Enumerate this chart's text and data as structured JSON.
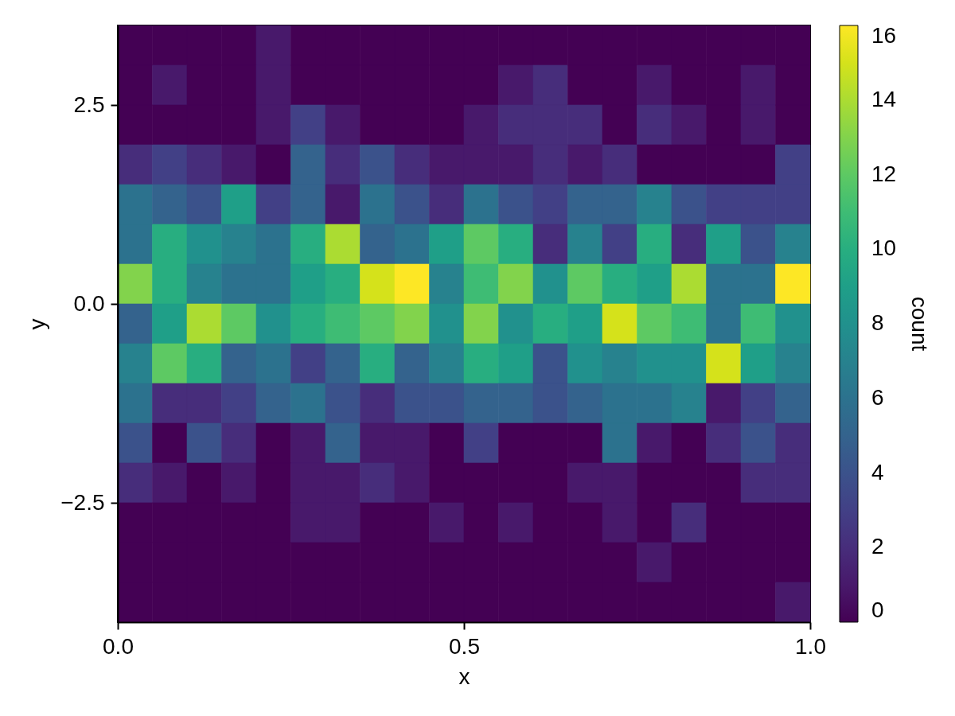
{
  "chart_data": {
    "type": "heatmap",
    "xlabel": "x",
    "ylabel": "y",
    "clabel": "count",
    "x": [
      0.025,
      0.075,
      0.125,
      0.175,
      0.225,
      0.275,
      0.325,
      0.375,
      0.425,
      0.475,
      0.525,
      0.575,
      0.625,
      0.675,
      0.725,
      0.775,
      0.825,
      0.875,
      0.925,
      0.975
    ],
    "y": [
      3.25,
      2.75,
      2.25,
      1.75,
      1.25,
      0.75,
      0.25,
      -0.25,
      -0.75,
      -1.25,
      -1.75,
      -2.25,
      -2.75,
      -3.25,
      -3.75
    ],
    "xlim": [
      0,
      1
    ],
    "xticks": [
      {
        "value": 0,
        "label": "0.0"
      },
      0.5,
      {
        "value": 1,
        "label": "1.0"
      }
    ],
    "ylim": [
      -4,
      3.5
    ],
    "yticks": [
      {
        "value": -2.5,
        "label": "−2.5"
      },
      {
        "value": 0,
        "label": "0.0"
      },
      2.5
    ],
    "clim": [
      0,
      16
    ],
    "cticks": [
      0,
      2,
      4,
      6,
      8,
      10,
      12,
      14,
      16
    ],
    "cells": [
      [
        0,
        0,
        0,
        0,
        1,
        0,
        0,
        0,
        0,
        0,
        0,
        0,
        0,
        0,
        0,
        0,
        0,
        0,
        0,
        0
      ],
      [
        0,
        1,
        0,
        0,
        1,
        0,
        0,
        0,
        0,
        0,
        0,
        1,
        2,
        0,
        0,
        1,
        0,
        0,
        1,
        0
      ],
      [
        0,
        0,
        0,
        0,
        1,
        3,
        1,
        0,
        0,
        0,
        1,
        2,
        2,
        2,
        0,
        2,
        1,
        0,
        1,
        0
      ],
      [
        2,
        3,
        2,
        1,
        0,
        5,
        2,
        4,
        2,
        1,
        1,
        1,
        2,
        1,
        2,
        0,
        0,
        0,
        0,
        3
      ],
      [
        6,
        5,
        4,
        9,
        3,
        5,
        1,
        6,
        4,
        2,
        6,
        4,
        3,
        5,
        5,
        7,
        4,
        3,
        3,
        3
      ],
      [
        6,
        10,
        8,
        7,
        6,
        10,
        14,
        5,
        6,
        9,
        12,
        10,
        2,
        7,
        3,
        10,
        2,
        9,
        4,
        7
      ],
      [
        13,
        10,
        7,
        6,
        6,
        9,
        10,
        15,
        16,
        7,
        11,
        13,
        8,
        12,
        10,
        9,
        14,
        6,
        6,
        16
      ],
      [
        5,
        9,
        14,
        12,
        8,
        10,
        11,
        12,
        13,
        8,
        13,
        8,
        10,
        9,
        15,
        12,
        11,
        6,
        11,
        8
      ],
      [
        7,
        12,
        10,
        5,
        6,
        3,
        5,
        10,
        5,
        7,
        10,
        9,
        4,
        8,
        7,
        8,
        8,
        15,
        9,
        7
      ],
      [
        6,
        2,
        2,
        3,
        5,
        6,
        4,
        2,
        4,
        4,
        5,
        5,
        4,
        5,
        6,
        6,
        7,
        1,
        3,
        5
      ],
      [
        4,
        0,
        4,
        2,
        0,
        1,
        5,
        1,
        1,
        0,
        3,
        0,
        0,
        0,
        6,
        1,
        0,
        2,
        4,
        2
      ],
      [
        2,
        1,
        0,
        1,
        0,
        1,
        1,
        2,
        1,
        0,
        0,
        0,
        0,
        1,
        1,
        0,
        0,
        0,
        2,
        2
      ],
      [
        0,
        0,
        0,
        0,
        0,
        1,
        1,
        0,
        0,
        1,
        0,
        1,
        0,
        0,
        1,
        0,
        2,
        0,
        0,
        0
      ],
      [
        0,
        0,
        0,
        0,
        0,
        0,
        0,
        0,
        0,
        0,
        0,
        0,
        0,
        0,
        0,
        1,
        0,
        0,
        0,
        0
      ],
      [
        0,
        0,
        0,
        0,
        0,
        0,
        0,
        0,
        0,
        0,
        0,
        0,
        0,
        0,
        0,
        0,
        0,
        0,
        0,
        1
      ]
    ]
  }
}
